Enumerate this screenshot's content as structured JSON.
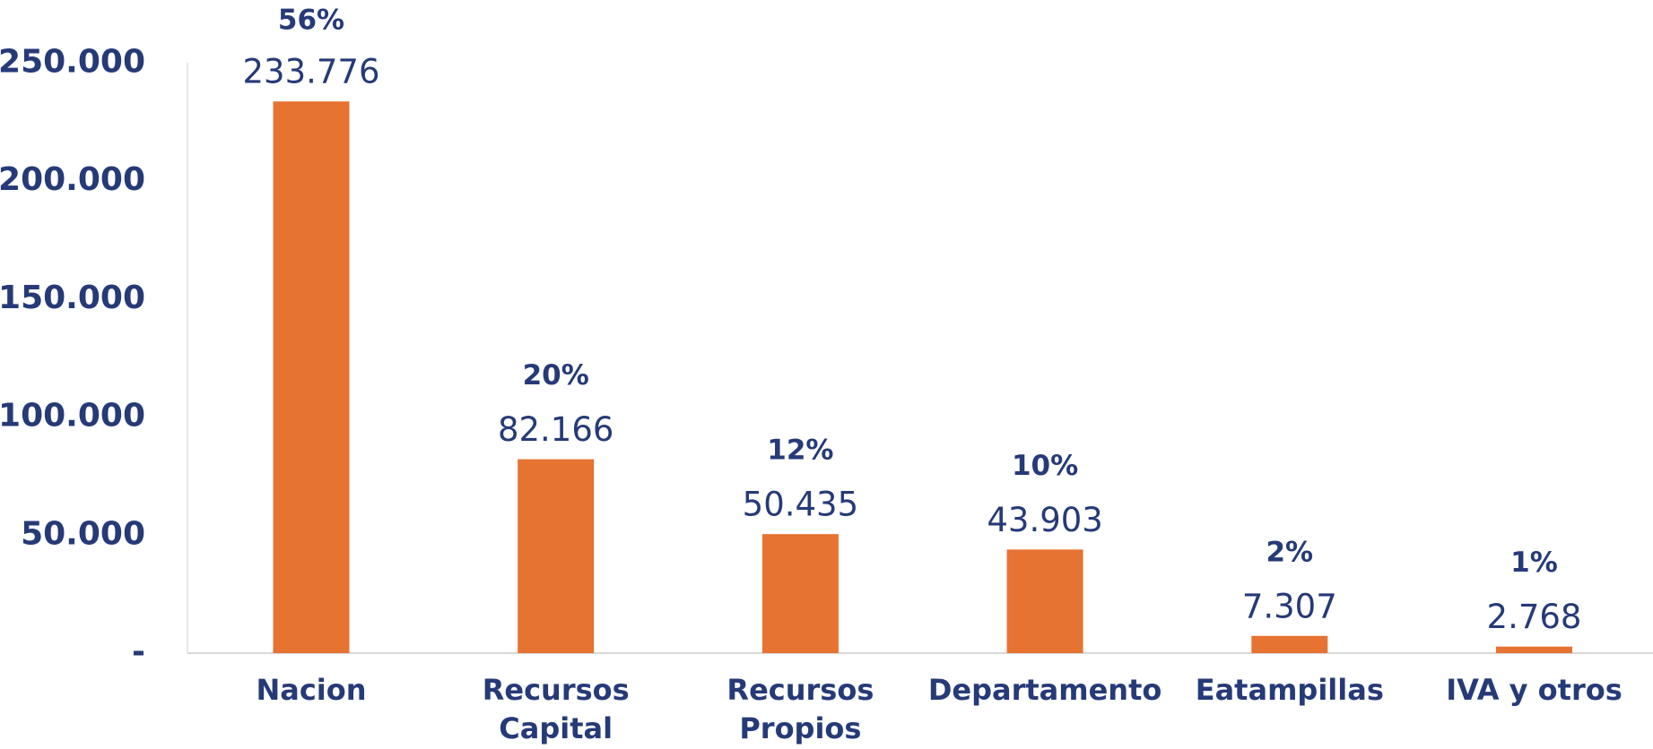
{
  "chart_data": {
    "type": "bar",
    "categories": [
      [
        "Nacion"
      ],
      [
        "Recursos",
        "Capital"
      ],
      [
        "Recursos",
        "Propios"
      ],
      [
        "Departamento"
      ],
      [
        "Eatampillas"
      ],
      [
        "IVA y otros"
      ]
    ],
    "values": [
      233776,
      82166,
      50435,
      43903,
      7307,
      2768
    ],
    "value_labels": [
      "233.776",
      "82.166",
      "50.435",
      "43.903",
      "7.307",
      "2.768"
    ],
    "annotations": [
      "56%",
      "20%",
      "12%",
      "10%",
      "2%",
      "1%"
    ],
    "color": "#e67332",
    "ylim": [
      0,
      250000
    ],
    "yticks": [
      {
        "value": 0,
        "label": "-"
      },
      {
        "value": 50000,
        "label": "50.000"
      },
      {
        "value": 100000,
        "label": "100.000"
      },
      {
        "value": 150000,
        "label": "150.000"
      },
      {
        "value": 200000,
        "label": "200.000"
      },
      {
        "value": 250000,
        "label": "250.000"
      }
    ],
    "grid": false
  }
}
